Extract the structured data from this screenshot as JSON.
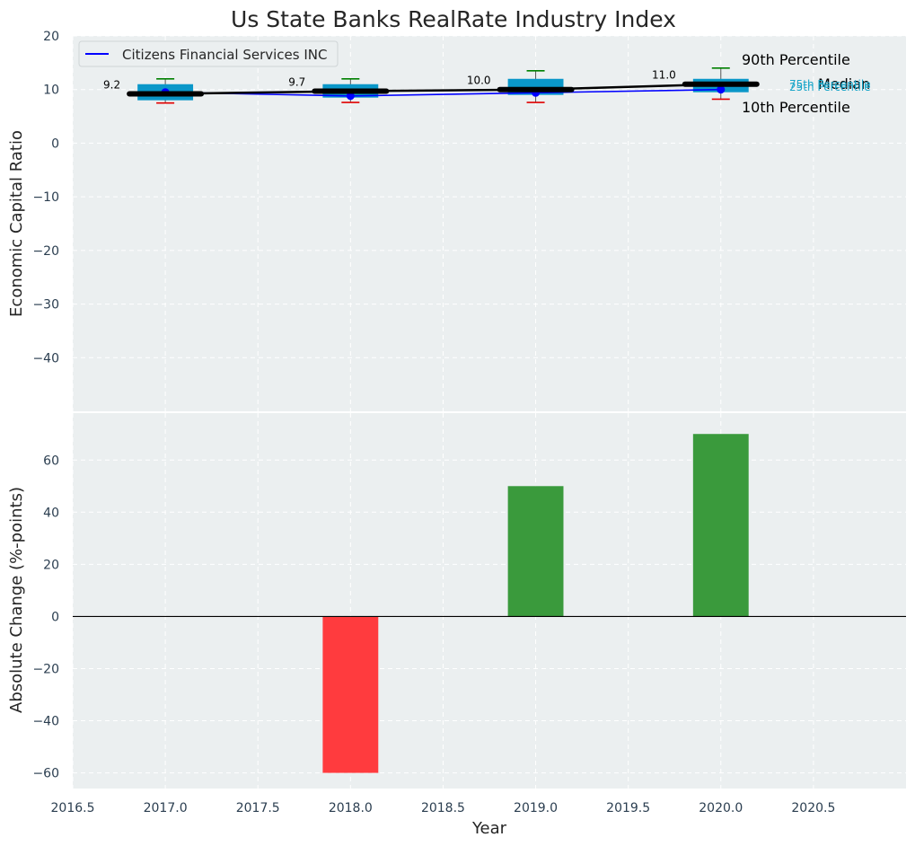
{
  "title": "Us State Banks RealRate Industry Index",
  "colors": {
    "panel_bg": "#ebeff0",
    "grid": "#ffffff",
    "company_line": "#0000ff",
    "median_line": "#000000",
    "box_fill": "#0a97c9",
    "whisker_top": "#008000",
    "whisker_bottom": "#e00000",
    "bar_positive": "#3a9a3c",
    "bar_negative": "#ff3b3e",
    "tick_text": "#2b3e50",
    "annot_25_75": "#1aa6c9"
  },
  "chart_data": [
    {
      "type": "box+line",
      "panel": "top",
      "ylabel": "Economic Capital Ratio",
      "xlabel": "",
      "ylim": [
        -50,
        20
      ],
      "yticks": [
        20,
        10,
        0,
        -10,
        -20,
        -30,
        -40
      ],
      "ytick_labels": [
        "20",
        "10",
        "0",
        "−10",
        "−20",
        "−30",
        "−40"
      ],
      "xlim": [
        2016.5,
        2021.0
      ],
      "grid": true,
      "legend": {
        "location": "upper-left",
        "entries": [
          "Citizens Financial Services INC"
        ]
      },
      "boxes": [
        {
          "x": 2017,
          "p10": 7.5,
          "p25": 8.0,
          "median": 9.2,
          "p75": 11.0,
          "p90": 12.0,
          "label": "9.2"
        },
        {
          "x": 2018,
          "p10": 7.6,
          "p25": 8.5,
          "median": 9.7,
          "p75": 11.0,
          "p90": 12.0,
          "label": "9.7"
        },
        {
          "x": 2019,
          "p10": 7.6,
          "p25": 9.0,
          "median": 10.0,
          "p75": 12.0,
          "p90": 13.5,
          "label": "10.0"
        },
        {
          "x": 2020,
          "p10": 8.2,
          "p25": 9.5,
          "median": 11.0,
          "p75": 12.0,
          "p90": 14.0,
          "label": "11.0"
        }
      ],
      "series": [
        {
          "name": "Citizens Financial Services INC",
          "x": [
            2017,
            2018,
            2019,
            2020
          ],
          "values": [
            9.5,
            8.8,
            9.4,
            10.0
          ]
        },
        {
          "name": "Median",
          "x": [
            2017,
            2018,
            2019,
            2020
          ],
          "values": [
            9.2,
            9.7,
            10.0,
            11.0
          ]
        }
      ],
      "annotations": {
        "p90": "90th Percentile",
        "median": "Median",
        "p10": "10th Percentile",
        "p75": "75th Percentile",
        "p25": "25th Percentile"
      }
    },
    {
      "type": "bar",
      "panel": "bottom",
      "ylabel": "Absolute Change (%-points)",
      "xlabel": "Year",
      "ylim": [
        -66,
        78
      ],
      "yticks": [
        60,
        40,
        20,
        0,
        -20,
        -40,
        -60
      ],
      "ytick_labels": [
        "60",
        "40",
        "20",
        "0",
        "−20",
        "−40",
        "−60"
      ],
      "xlim": [
        2016.5,
        2021.0
      ],
      "xticks": [
        2016.5,
        2017.0,
        2017.5,
        2018.0,
        2018.5,
        2019.0,
        2019.5,
        2020.0,
        2020.5
      ],
      "xtick_labels": [
        "2016.5",
        "2017.0",
        "2017.5",
        "2018.0",
        "2018.5",
        "2019.0",
        "2019.5",
        "2020.0",
        "2020.5"
      ],
      "grid": true,
      "bar_width": 0.3,
      "x": [
        2018,
        2019,
        2020
      ],
      "values": [
        -60,
        50,
        70
      ]
    }
  ]
}
